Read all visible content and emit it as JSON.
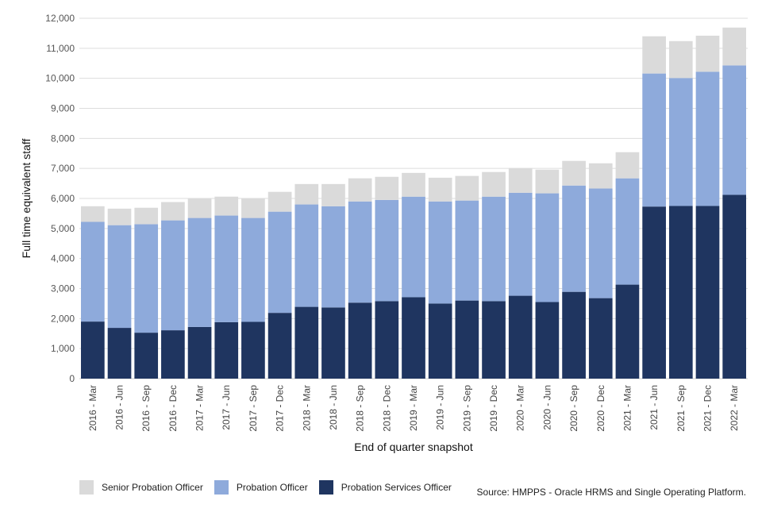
{
  "chart_data": {
    "type": "bar",
    "stacked": true,
    "title": "",
    "xlabel": "End of quarter snapshot",
    "ylabel": "Full time equivalent staff",
    "ylim": [
      0,
      12000
    ],
    "yticks": [
      0,
      1000,
      2000,
      3000,
      4000,
      5000,
      6000,
      7000,
      8000,
      9000,
      10000,
      11000,
      12000
    ],
    "ytick_labels": [
      "0",
      "1,000",
      "2,000",
      "3,000",
      "4,000",
      "5,000",
      "6,000",
      "7,000",
      "8,000",
      "9,000",
      "10,000",
      "11,000",
      "12,000"
    ],
    "grid": true,
    "legend_position": "bottom-left",
    "categories": [
      "2016 - Mar",
      "2016 - Jun",
      "2016 - Sep",
      "2016 - Dec",
      "2017 - Mar",
      "2017 - Jun",
      "2017 - Sep",
      "2017 - Dec",
      "2018 - Mar",
      "2018 - Jun",
      "2018 - Sep",
      "2018 - Dec",
      "2019 - Mar",
      "2019 - Jun",
      "2019 - Sep",
      "2019 - Dec",
      "2020 - Mar",
      "2020 - Jun",
      "2020 - Sep",
      "2020 - Dec",
      "2021 - Mar",
      "2021 - Jun",
      "2021 - Sep",
      "2021 - Dec",
      "2022 - Mar"
    ],
    "series": [
      {
        "name": "Probation Services Officer",
        "color": "#1f3560",
        "values": [
          1900,
          1690,
          1530,
          1610,
          1720,
          1880,
          1890,
          2190,
          2390,
          2370,
          2530,
          2580,
          2710,
          2500,
          2600,
          2580,
          2760,
          2550,
          2890,
          2680,
          3130,
          5730,
          5750,
          5750,
          6120
        ]
      },
      {
        "name": "Probation Officer",
        "color": "#8eaadb",
        "values": [
          3320,
          3420,
          3610,
          3660,
          3630,
          3550,
          3460,
          3370,
          3410,
          3370,
          3370,
          3370,
          3350,
          3400,
          3330,
          3480,
          3430,
          3620,
          3540,
          3650,
          3540,
          4430,
          4260,
          4470,
          4310
        ]
      },
      {
        "name": "Senior Probation Officer",
        "color": "#dadada",
        "values": [
          520,
          550,
          550,
          610,
          650,
          630,
          650,
          660,
          680,
          740,
          770,
          770,
          790,
          790,
          820,
          820,
          820,
          790,
          820,
          840,
          870,
          1240,
          1230,
          1200,
          1260
        ]
      }
    ],
    "legend_order": [
      "Senior Probation Officer",
      "Probation Officer",
      "Probation Services Officer"
    ]
  },
  "legend": [
    {
      "label": "Senior Probation Officer",
      "color": "#dadada"
    },
    {
      "label": "Probation Officer",
      "color": "#8eaadb"
    },
    {
      "label": "Probation Services Officer",
      "color": "#1f3560"
    }
  ],
  "source": "Source: HMPPS - Oracle HRMS and Single Operating Platform."
}
